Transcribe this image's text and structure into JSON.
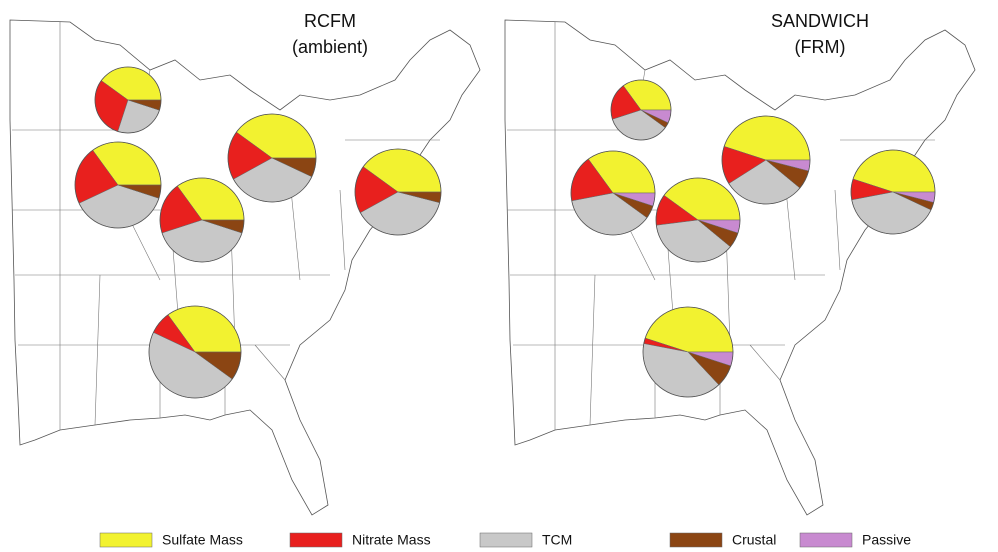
{
  "legend": [
    {
      "name": "Sulfate Mass",
      "color": "#f2f230"
    },
    {
      "name": "Nitrate Mass",
      "color": "#e8201e"
    },
    {
      "name": "TCM",
      "color": "#c8c8c8"
    },
    {
      "name": "Crustal",
      "color": "#8b4513"
    },
    {
      "name": "Passive",
      "color": "#c88ad0"
    }
  ],
  "maps": [
    {
      "title": "RCFM",
      "subtitle": "(ambient)",
      "pies": [
        {
          "values": [
            40,
            30,
            25,
            5,
            0
          ]
        },
        {
          "values": [
            35,
            22,
            38,
            5,
            0
          ]
        },
        {
          "values": [
            35,
            20,
            40,
            5,
            0
          ]
        },
        {
          "values": [
            40,
            18,
            35,
            7,
            0
          ]
        },
        {
          "values": [
            40,
            18,
            38,
            4,
            0
          ]
        },
        {
          "values": [
            35,
            8,
            47,
            10,
            0
          ]
        }
      ]
    },
    {
      "title": "SANDWICH",
      "subtitle": "(FRM)",
      "pies": [
        {
          "values": [
            35,
            20,
            35,
            3,
            7
          ]
        },
        {
          "values": [
            35,
            18,
            37,
            5,
            5
          ]
        },
        {
          "values": [
            40,
            12,
            37,
            6,
            5
          ]
        },
        {
          "values": [
            45,
            14,
            30,
            7,
            4
          ]
        },
        {
          "values": [
            45,
            8,
            40,
            3,
            4
          ]
        },
        {
          "values": [
            45,
            2,
            40,
            8,
            5
          ]
        }
      ]
    }
  ]
}
